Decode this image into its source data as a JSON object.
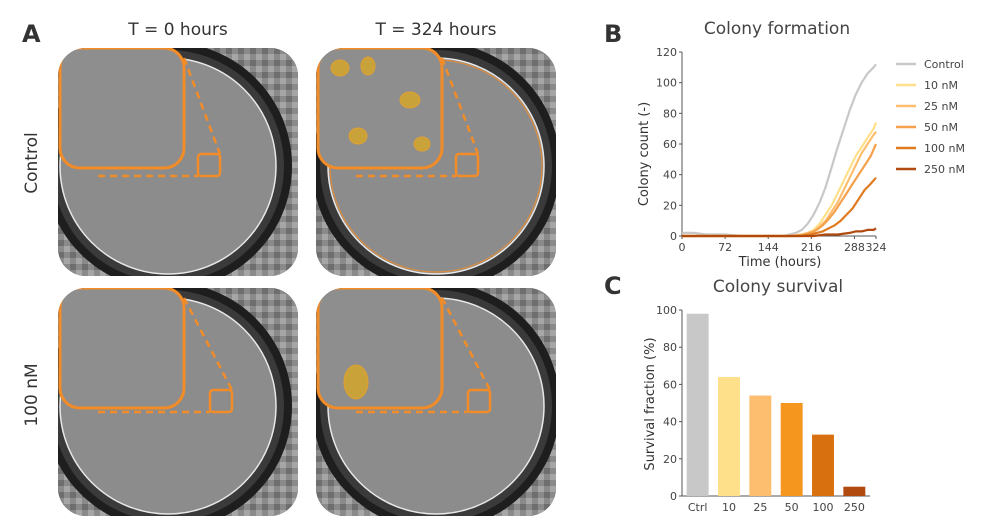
{
  "panelA": {
    "letter": "A",
    "col_titles": [
      "T = 0 hours",
      "T = 324 hours"
    ],
    "row_titles": [
      "Control",
      "100 nM"
    ],
    "highlight_color": "#F28C28"
  },
  "chart_data": [
    {
      "letter": "B",
      "type": "line",
      "title": "Colony formation",
      "xlabel": "Time (hours)",
      "ylabel": "Colony count (-)",
      "xlim": [
        0,
        324
      ],
      "ylim": [
        0,
        120
      ],
      "xticks": [
        0,
        72,
        144,
        216,
        288,
        324
      ],
      "yticks": [
        0,
        20,
        40,
        60,
        80,
        100,
        120
      ],
      "legend_position": "right",
      "series": [
        {
          "name": "Control",
          "color": "#C8C8C8",
          "x": [
            0,
            20,
            40,
            72,
            100,
            144,
            170,
            190,
            200,
            210,
            220,
            230,
            240,
            250,
            260,
            270,
            280,
            290,
            300,
            310,
            320,
            324
          ],
          "y": [
            2,
            2,
            1,
            1,
            0,
            0,
            0,
            2,
            4,
            8,
            14,
            22,
            32,
            45,
            58,
            70,
            82,
            92,
            100,
            106,
            110,
            112
          ]
        },
        {
          "name": "10 nM",
          "color": "#FFE08A",
          "x": [
            0,
            144,
            180,
            200,
            210,
            220,
            230,
            240,
            250,
            260,
            270,
            280,
            290,
            300,
            310,
            320,
            324
          ],
          "y": [
            0,
            0,
            0,
            1,
            2,
            4,
            8,
            14,
            20,
            28,
            36,
            44,
            52,
            58,
            64,
            70,
            74
          ]
        },
        {
          "name": "25 nM",
          "color": "#FDBF6F",
          "x": [
            0,
            144,
            180,
            200,
            210,
            220,
            230,
            240,
            250,
            260,
            270,
            280,
            290,
            300,
            310,
            320,
            324
          ],
          "y": [
            0,
            0,
            0,
            1,
            2,
            3,
            6,
            10,
            16,
            22,
            30,
            38,
            46,
            54,
            60,
            66,
            68
          ]
        },
        {
          "name": "50 nM",
          "color": "#F5A04A",
          "x": [
            0,
            144,
            190,
            205,
            215,
            225,
            235,
            245,
            255,
            265,
            275,
            285,
            295,
            305,
            315,
            324
          ],
          "y": [
            0,
            0,
            0,
            1,
            2,
            4,
            7,
            11,
            16,
            22,
            28,
            34,
            40,
            46,
            52,
            60
          ]
        },
        {
          "name": "100 nM",
          "color": "#E07A1F",
          "x": [
            0,
            144,
            200,
            215,
            225,
            235,
            245,
            255,
            265,
            275,
            285,
            295,
            305,
            315,
            324
          ],
          "y": [
            0,
            0,
            0,
            1,
            2,
            3,
            5,
            7,
            10,
            14,
            18,
            24,
            30,
            34,
            38
          ]
        },
        {
          "name": "250 nM",
          "color": "#B04A0E",
          "x": [
            0,
            144,
            220,
            240,
            260,
            280,
            290,
            300,
            310,
            320,
            324
          ],
          "y": [
            0,
            0,
            0,
            1,
            1,
            2,
            3,
            3,
            4,
            4,
            5
          ]
        }
      ]
    },
    {
      "letter": "C",
      "type": "bar",
      "title": "Colony survival",
      "xlabel": "",
      "ylabel": "Survival fraction (%)",
      "ylim": [
        0,
        100
      ],
      "yticks": [
        0,
        20,
        40,
        60,
        80,
        100
      ],
      "categories": [
        "Ctrl",
        "10",
        "25",
        "50",
        "100",
        "250"
      ],
      "values": [
        98,
        64,
        54,
        50,
        33,
        5
      ],
      "colors": [
        "#C8C8C8",
        "#FFE08A",
        "#FDBF6F",
        "#F5961E",
        "#D9700F",
        "#B04A0E"
      ]
    }
  ]
}
